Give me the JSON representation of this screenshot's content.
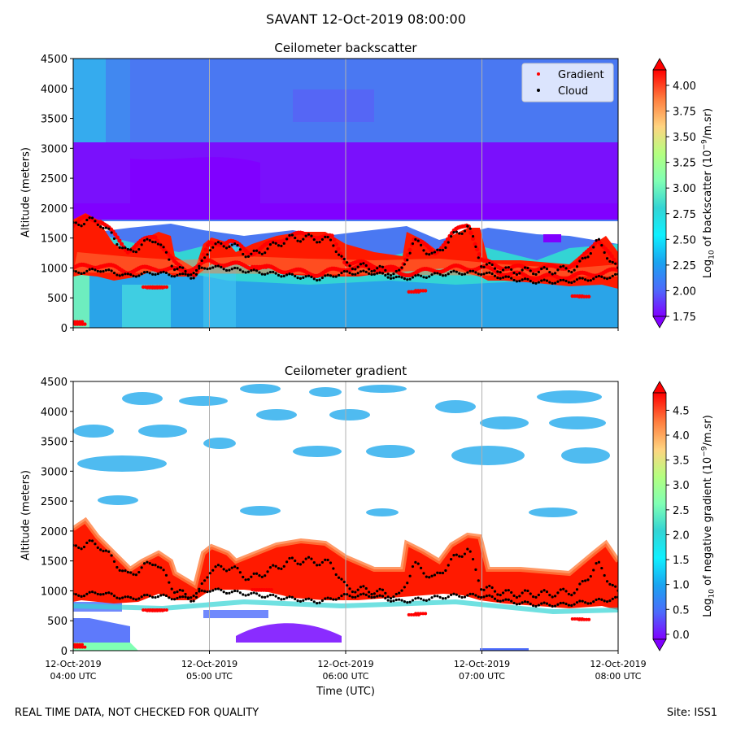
{
  "header": {
    "suptitle": "SAVANT 12-Oct-2019 08:00:00"
  },
  "footer": {
    "left": "REAL TIME DATA, NOT CHECKED FOR QUALITY",
    "right": "Site: ISS1"
  },
  "x_axis": {
    "label": "Time (UTC)",
    "ticks": [
      {
        "date": "12-Oct-2019",
        "time": "04:00 UTC"
      },
      {
        "date": "12-Oct-2019",
        "time": "05:00 UTC"
      },
      {
        "date": "12-Oct-2019",
        "time": "06:00 UTC"
      },
      {
        "date": "12-Oct-2019",
        "time": "07:00 UTC"
      },
      {
        "date": "12-Oct-2019",
        "time": "08:00 UTC"
      }
    ]
  },
  "colors": {
    "colormap": [
      "#8000ff",
      "#4c6bfb",
      "#0ff0ff",
      "#33d4d4",
      "#80ffb4",
      "#b4ff80",
      "#ffd480",
      "#ff8040",
      "#ff2000",
      "#ff0000"
    ],
    "gradient_marker": "#ff0000",
    "cloud_marker": "#000000",
    "grid": "#b0b0b0"
  },
  "chart_data": [
    {
      "type": "heatmap",
      "title": "Ceilometer backscatter",
      "xlabel": "Time (UTC)",
      "ylabel": "Altitude (meters)",
      "xlim_hours_utc": [
        4.0,
        8.0
      ],
      "ylim": [
        0,
        4500
      ],
      "yticks": [
        "0",
        "500",
        "1000",
        "1500",
        "2000",
        "2500",
        "3000",
        "3500",
        "4000",
        "4500"
      ],
      "grid": "vertical",
      "colorbar": {
        "label_prefix": "Log",
        "label_sub": "10",
        "label_mid": " of backscatter (10",
        "label_sup": "−9",
        "label_suffix": "/m.sr)",
        "min": 1.75,
        "max": 4.15,
        "ticks": [
          "1.75",
          "2.00",
          "2.25",
          "2.50",
          "2.75",
          "3.00",
          "3.25",
          "3.50",
          "3.75",
          "4.00"
        ]
      },
      "legend": {
        "position": "top-right",
        "entries": [
          {
            "label": "Gradient",
            "color": "#ff0000"
          },
          {
            "label": "Cloud",
            "color": "#000000"
          }
        ]
      },
      "series": [
        {
          "name": "Gradient (upper layer)",
          "x": [
            4.0,
            4.1,
            4.2,
            4.4,
            4.6,
            4.75,
            4.9,
            5.0,
            5.15,
            5.3,
            5.45,
            5.6,
            5.75,
            5.9,
            6.0,
            6.2,
            6.4,
            6.5,
            6.65,
            6.8,
            6.9,
            7.0,
            7.2,
            7.5,
            7.7,
            7.85,
            8.0
          ],
          "y": [
            1700,
            1850,
            1800,
            1300,
            1550,
            1050,
            900,
            1400,
            1450,
            1250,
            1400,
            1550,
            1550,
            1500,
            1100,
            1050,
            950,
            1500,
            1250,
            1600,
            1750,
            1100,
            1000,
            1000,
            1050,
            1500,
            1000
          ]
        },
        {
          "name": "Gradient (lower layer)",
          "x": [
            4.0,
            4.2,
            4.4,
            4.6,
            4.8,
            5.0,
            5.2,
            5.4,
            5.6,
            5.8,
            6.0,
            6.2,
            6.4,
            6.6,
            6.8,
            7.0,
            7.2,
            7.4,
            7.6,
            7.8,
            8.0
          ],
          "y": [
            1000,
            1050,
            950,
            1000,
            950,
            1100,
            1050,
            1000,
            950,
            900,
            1000,
            1000,
            900,
            950,
            1000,
            1000,
            900,
            850,
            850,
            900,
            950
          ]
        },
        {
          "name": "Gradient (isolated)",
          "x": [
            4.55,
            4.58,
            4.6,
            4.62,
            4.65,
            5.35,
            5.38,
            5.42,
            6.5,
            6.55,
            7.7,
            7.75,
            4.03,
            4.05
          ],
          "y": [
            680,
            670,
            680,
            670,
            680,
            1020,
            1010,
            1020,
            600,
            620,
            530,
            520,
            100,
            60
          ]
        }
      ]
    },
    {
      "type": "heatmap",
      "title": "Ceilometer gradient",
      "xlabel": "Time (UTC)",
      "ylabel": "Altitude (meters)",
      "xlim_hours_utc": [
        4.0,
        8.0
      ],
      "ylim": [
        0,
        4500
      ],
      "yticks": [
        "0",
        "500",
        "1000",
        "1500",
        "2000",
        "2500",
        "3000",
        "3500",
        "4000",
        "4500"
      ],
      "grid": "vertical",
      "colorbar": {
        "label_prefix": "Log",
        "label_sub": "10",
        "label_mid": " of negative gradient (10",
        "label_sup": "−9",
        "label_suffix": "/m.sr)",
        "min": -0.1,
        "max": 4.85,
        "ticks": [
          "0.0",
          "0.5",
          "1.0",
          "1.5",
          "2.0",
          "2.5",
          "3.0",
          "3.5",
          "4.0",
          "4.5"
        ]
      },
      "series": [
        {
          "name": "Cloud",
          "x": [
            4.0,
            4.1,
            4.2,
            4.4,
            4.6,
            4.75,
            4.9,
            5.0,
            5.15,
            5.3,
            5.45,
            5.6,
            5.75,
            5.9,
            6.0,
            6.2,
            6.4,
            6.5,
            6.65,
            6.8,
            6.9,
            7.0,
            7.2,
            7.5,
            7.7,
            7.85,
            8.0
          ],
          "y": [
            1700,
            1800,
            1750,
            1250,
            1500,
            1000,
            850,
            1350,
            1400,
            1200,
            1350,
            1500,
            1500,
            1450,
            1050,
            1000,
            900,
            1450,
            1200,
            1550,
            1700,
            1050,
            950,
            950,
            1000,
            1450,
            950
          ]
        }
      ]
    }
  ]
}
